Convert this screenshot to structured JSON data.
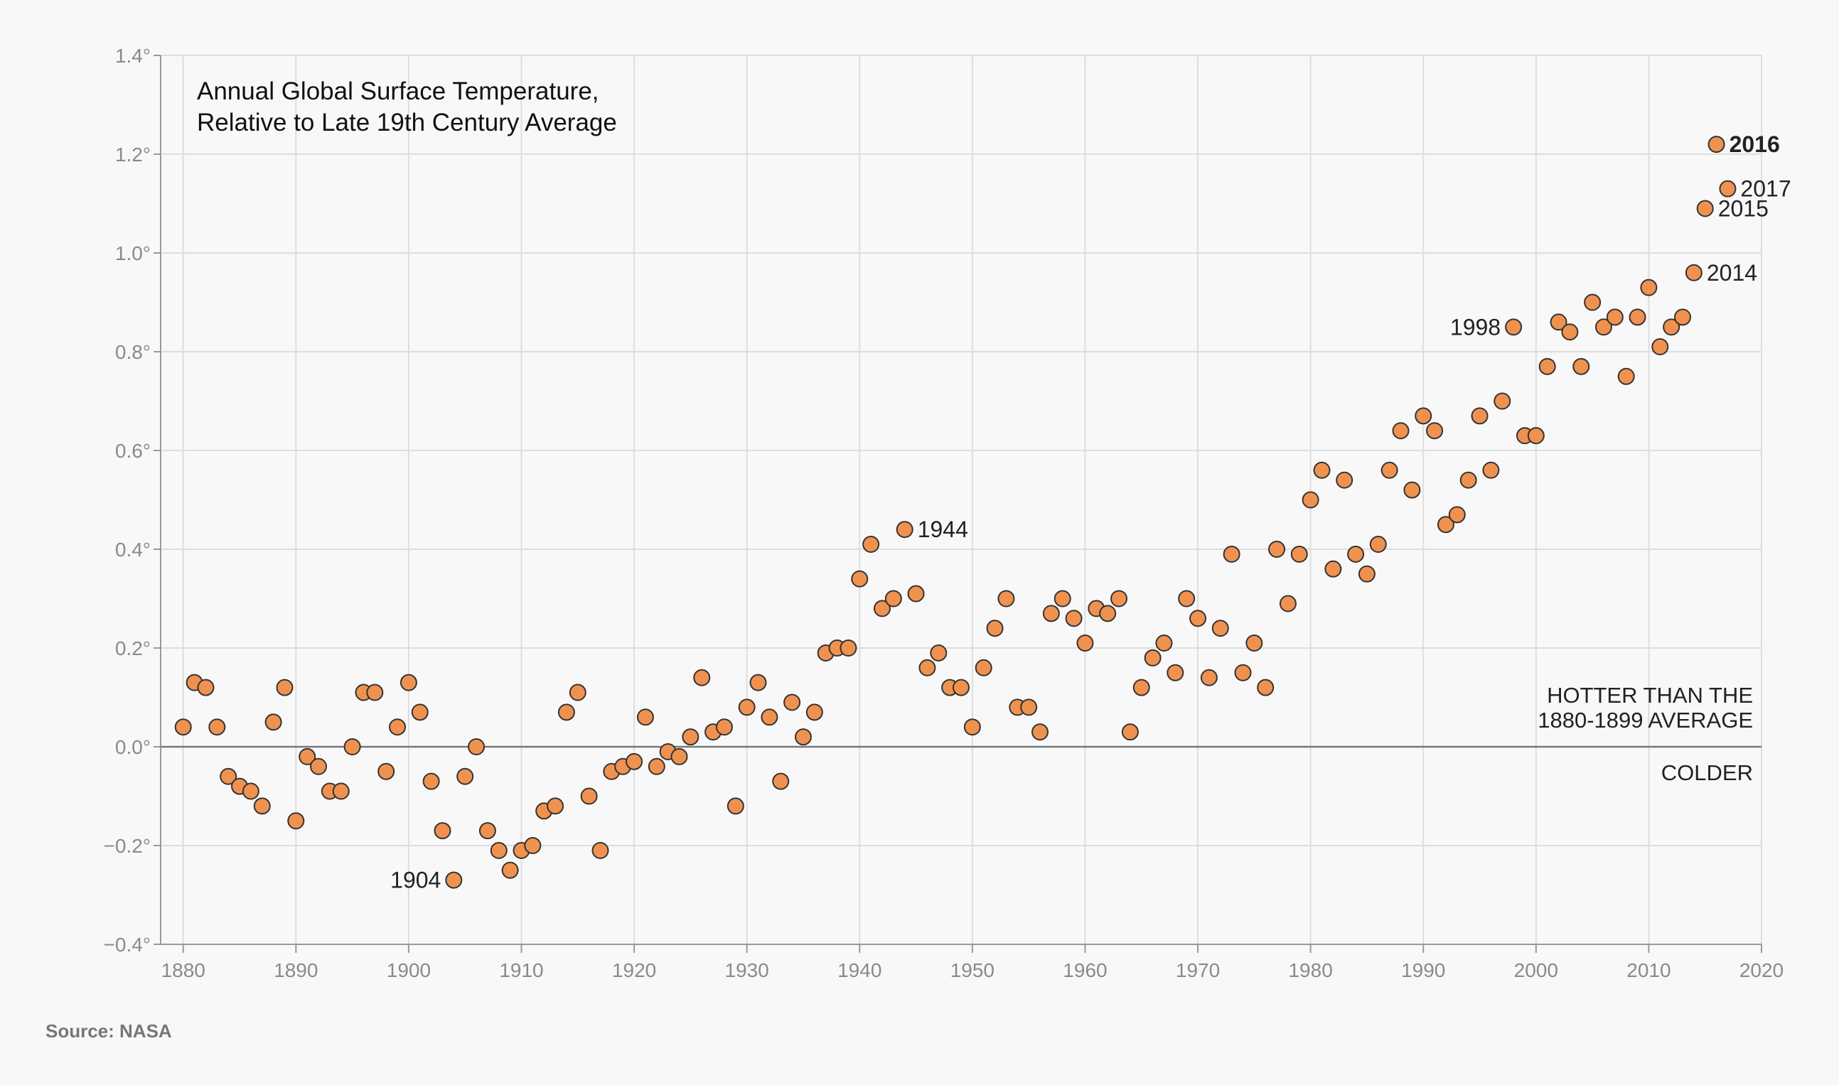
{
  "chart_data": {
    "type": "scatter",
    "title": [
      "Annual Global Surface Temperature,",
      "Relative to Late 19th Century Average"
    ],
    "xlim": [
      1878,
      2020
    ],
    "ylim": [
      -0.4,
      1.4
    ],
    "x_ticks": [
      1880,
      1890,
      1900,
      1910,
      1920,
      1930,
      1940,
      1950,
      1960,
      1970,
      1980,
      1990,
      2000,
      2010,
      2020
    ],
    "y_ticks": [
      {
        "value": -0.4,
        "label": "−0.4°"
      },
      {
        "value": -0.2,
        "label": "−0.2°"
      },
      {
        "value": 0.0,
        "label": "0.0°"
      },
      {
        "value": 0.2,
        "label": "0.2°"
      },
      {
        "value": 0.4,
        "label": "0.4°"
      },
      {
        "value": 0.6,
        "label": "0.6°"
      },
      {
        "value": 0.8,
        "label": "0.8°"
      },
      {
        "value": 1.0,
        "label": "1.0°"
      },
      {
        "value": 1.2,
        "label": "1.2°"
      },
      {
        "value": 1.4,
        "label": "1.4°"
      }
    ],
    "grid": true,
    "point_color": "#f0924f",
    "point_stroke": "#333333",
    "zero_line_color": "#777777",
    "annotations": {
      "above": [
        "HOTTER THAN THE",
        "1880-1899 AVERAGE"
      ],
      "below": "COLDER"
    },
    "labeled_years": [
      {
        "year": 1904,
        "label": "1904",
        "side": "left",
        "bold": false
      },
      {
        "year": 1944,
        "label": "1944",
        "side": "right",
        "bold": false
      },
      {
        "year": 1998,
        "label": "1998",
        "side": "left",
        "bold": false
      },
      {
        "year": 2014,
        "label": "2014",
        "side": "right",
        "bold": false
      },
      {
        "year": 2015,
        "label": "2015",
        "side": "right",
        "bold": false
      },
      {
        "year": 2016,
        "label": "2016",
        "side": "right",
        "bold": true
      },
      {
        "year": 2017,
        "label": "2017",
        "side": "right",
        "bold": false
      }
    ],
    "points": [
      [
        1880,
        0.04
      ],
      [
        1881,
        0.13
      ],
      [
        1882,
        0.12
      ],
      [
        1883,
        0.04
      ],
      [
        1884,
        -0.06
      ],
      [
        1885,
        -0.08
      ],
      [
        1886,
        -0.09
      ],
      [
        1887,
        -0.12
      ],
      [
        1888,
        0.05
      ],
      [
        1889,
        0.12
      ],
      [
        1890,
        -0.15
      ],
      [
        1891,
        -0.02
      ],
      [
        1892,
        -0.04
      ],
      [
        1893,
        -0.09
      ],
      [
        1894,
        -0.09
      ],
      [
        1895,
        0.0
      ],
      [
        1896,
        0.11
      ],
      [
        1897,
        0.11
      ],
      [
        1898,
        -0.05
      ],
      [
        1899,
        0.04
      ],
      [
        1900,
        0.13
      ],
      [
        1901,
        0.07
      ],
      [
        1902,
        -0.07
      ],
      [
        1903,
        -0.17
      ],
      [
        1904,
        -0.27
      ],
      [
        1905,
        -0.06
      ],
      [
        1906,
        0.0
      ],
      [
        1907,
        -0.17
      ],
      [
        1908,
        -0.21
      ],
      [
        1909,
        -0.25
      ],
      [
        1910,
        -0.21
      ],
      [
        1911,
        -0.2
      ],
      [
        1912,
        -0.13
      ],
      [
        1913,
        -0.12
      ],
      [
        1914,
        0.07
      ],
      [
        1915,
        0.11
      ],
      [
        1916,
        -0.1
      ],
      [
        1917,
        -0.21
      ],
      [
        1918,
        -0.05
      ],
      [
        1919,
        -0.04
      ],
      [
        1920,
        -0.03
      ],
      [
        1921,
        0.06
      ],
      [
        1922,
        -0.04
      ],
      [
        1923,
        -0.01
      ],
      [
        1924,
        -0.02
      ],
      [
        1925,
        0.02
      ],
      [
        1926,
        0.14
      ],
      [
        1927,
        0.03
      ],
      [
        1928,
        0.04
      ],
      [
        1929,
        -0.12
      ],
      [
        1930,
        0.08
      ],
      [
        1931,
        0.13
      ],
      [
        1932,
        0.06
      ],
      [
        1933,
        -0.07
      ],
      [
        1934,
        0.09
      ],
      [
        1935,
        0.02
      ],
      [
        1936,
        0.07
      ],
      [
        1937,
        0.19
      ],
      [
        1938,
        0.2
      ],
      [
        1939,
        0.2
      ],
      [
        1940,
        0.34
      ],
      [
        1941,
        0.41
      ],
      [
        1942,
        0.28
      ],
      [
        1943,
        0.3
      ],
      [
        1944,
        0.44
      ],
      [
        1945,
        0.31
      ],
      [
        1946,
        0.16
      ],
      [
        1947,
        0.19
      ],
      [
        1948,
        0.12
      ],
      [
        1949,
        0.12
      ],
      [
        1950,
        0.04
      ],
      [
        1951,
        0.16
      ],
      [
        1952,
        0.24
      ],
      [
        1953,
        0.3
      ],
      [
        1954,
        0.08
      ],
      [
        1955,
        0.08
      ],
      [
        1956,
        0.03
      ],
      [
        1957,
        0.27
      ],
      [
        1958,
        0.3
      ],
      [
        1959,
        0.26
      ],
      [
        1960,
        0.21
      ],
      [
        1961,
        0.28
      ],
      [
        1962,
        0.27
      ],
      [
        1963,
        0.3
      ],
      [
        1964,
        0.03
      ],
      [
        1965,
        0.12
      ],
      [
        1966,
        0.18
      ],
      [
        1967,
        0.21
      ],
      [
        1968,
        0.15
      ],
      [
        1969,
        0.3
      ],
      [
        1970,
        0.26
      ],
      [
        1971,
        0.14
      ],
      [
        1972,
        0.24
      ],
      [
        1973,
        0.39
      ],
      [
        1974,
        0.15
      ],
      [
        1975,
        0.21
      ],
      [
        1976,
        0.12
      ],
      [
        1977,
        0.4
      ],
      [
        1978,
        0.29
      ],
      [
        1979,
        0.39
      ],
      [
        1980,
        0.5
      ],
      [
        1981,
        0.56
      ],
      [
        1982,
        0.36
      ],
      [
        1983,
        0.54
      ],
      [
        1984,
        0.39
      ],
      [
        1985,
        0.35
      ],
      [
        1986,
        0.41
      ],
      [
        1987,
        0.56
      ],
      [
        1988,
        0.64
      ],
      [
        1989,
        0.52
      ],
      [
        1990,
        0.67
      ],
      [
        1991,
        0.64
      ],
      [
        1992,
        0.45
      ],
      [
        1993,
        0.47
      ],
      [
        1994,
        0.54
      ],
      [
        1995,
        0.67
      ],
      [
        1996,
        0.56
      ],
      [
        1997,
        0.7
      ],
      [
        1998,
        0.85
      ],
      [
        1999,
        0.63
      ],
      [
        2000,
        0.63
      ],
      [
        2001,
        0.77
      ],
      [
        2002,
        0.86
      ],
      [
        2003,
        0.84
      ],
      [
        2004,
        0.77
      ],
      [
        2005,
        0.9
      ],
      [
        2006,
        0.85
      ],
      [
        2007,
        0.87
      ],
      [
        2008,
        0.75
      ],
      [
        2009,
        0.87
      ],
      [
        2010,
        0.93
      ],
      [
        2011,
        0.81
      ],
      [
        2012,
        0.85
      ],
      [
        2013,
        0.87
      ],
      [
        2014,
        0.96
      ],
      [
        2015,
        1.09
      ],
      [
        2016,
        1.22
      ],
      [
        2017,
        1.13
      ]
    ]
  },
  "source": "Source: NASA"
}
